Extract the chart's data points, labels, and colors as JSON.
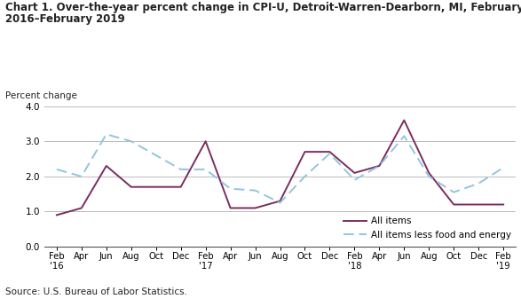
{
  "title_line1": "Chart 1. Over-the-year percent change in CPI-U, Detroit-Warren-Dearborn, MI, February",
  "title_line2": "2016–February 2019",
  "ylabel": "Percent change",
  "source": "Source: U.S. Bureau of Labor Statistics.",
  "xlabels": [
    "Feb\n'16",
    "Apr",
    "Jun",
    "Aug",
    "Oct",
    "Dec",
    "Feb\n'17",
    "Apr",
    "Jun",
    "Aug",
    "Oct",
    "Dec",
    "Feb\n'18",
    "Apr",
    "Jun",
    "Aug",
    "Oct",
    "Dec",
    "Feb\n'19"
  ],
  "all_items": [
    0.9,
    1.1,
    2.3,
    1.7,
    1.7,
    1.7,
    3.0,
    1.1,
    1.1,
    1.3,
    2.7,
    2.7,
    2.1,
    2.3,
    3.6,
    2.1,
    1.2,
    1.2,
    1.2
  ],
  "less_food_energy": [
    2.2,
    2.0,
    3.2,
    3.0,
    2.6,
    2.2,
    2.2,
    1.65,
    1.6,
    1.25,
    2.0,
    2.65,
    1.9,
    2.3,
    3.15,
    2.0,
    1.55,
    1.8,
    2.25
  ],
  "ylim": [
    0.0,
    4.0
  ],
  "yticks": [
    0.0,
    1.0,
    2.0,
    3.0,
    4.0
  ],
  "all_items_color": "#7B2D5E",
  "less_food_color": "#92C5DE",
  "background_color": "#ffffff",
  "grid_color": "#bbbbbb"
}
